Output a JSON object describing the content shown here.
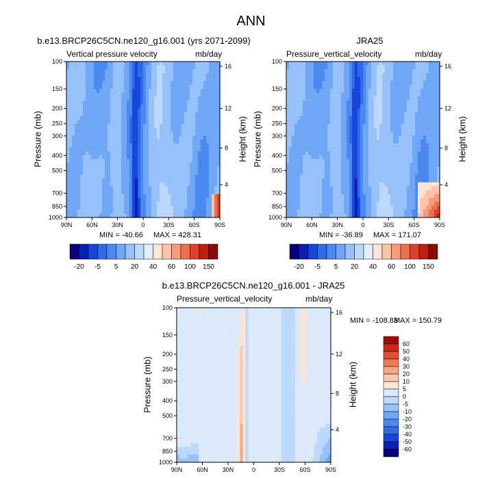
{
  "figure": {
    "title": "ANN"
  },
  "colors": {
    "main_levels": [
      "#08007a",
      "#0a1fb5",
      "#1846dc",
      "#2e6be6",
      "#4a8af0",
      "#6fa6f5",
      "#96c1fa",
      "#bcd8fc",
      "#e0eefe",
      "#fde6d6",
      "#fbc4a8",
      "#f79b7a",
      "#ef6e4c",
      "#e04028",
      "#c21e10",
      "#8c0a04"
    ],
    "diff_levels": [
      "#08007a",
      "#0a1fb5",
      "#1846dc",
      "#2e6be6",
      "#4a8af0",
      "#6fa6f5",
      "#96c1fa",
      "#bcd8fc",
      "#dce9fb",
      "#fde4d2",
      "#fbc8ae",
      "#f7a584",
      "#ef7a58",
      "#e24e32",
      "#c9281a",
      "#9c0c06"
    ]
  },
  "chart_data": [
    {
      "id": "model",
      "type": "heatmap",
      "title": "b.e13.BRCP26C5CN.ne120_g16.001 (yrs 2071-2099)",
      "variable_label": "Vertical pressure velocity",
      "units": "mb/day",
      "ylabel": "Pressure (mb)",
      "y2label": "Height (km)",
      "x_ticks": [
        "90N",
        "60N",
        "30N",
        "0",
        "30S",
        "60S",
        "90S"
      ],
      "y_ticks": [
        "100",
        "150",
        "200",
        "250",
        "300",
        "400",
        "500",
        "700",
        "850",
        "1000"
      ],
      "y2_ticks": [
        "16",
        "12",
        "8",
        "4"
      ],
      "min_label": "MIN = -40.66",
      "max_label": "MAX = 428.31",
      "colorbar": {
        "orientation": "horizontal",
        "labels": [
          "-20",
          "-5",
          "5",
          "20",
          "40",
          "60",
          "100",
          "150"
        ]
      }
    },
    {
      "id": "obs",
      "type": "heatmap",
      "title": "JRA25",
      "variable_label": "Pressure_vertical_velocity",
      "units": "mb/day",
      "ylabel": "Pressure (mb)",
      "y2label": "Height (km)",
      "x_ticks": [
        "90N",
        "60N",
        "30N",
        "0",
        "30S",
        "60S",
        "90S"
      ],
      "y_ticks": [
        "100",
        "150",
        "200",
        "250",
        "300",
        "400",
        "500",
        "700",
        "850",
        "1000"
      ],
      "y2_ticks": [
        "16",
        "12",
        "8",
        "4"
      ],
      "min_label": "MIN = -36.89",
      "max_label": "MAX = 171.07",
      "colorbar": {
        "orientation": "horizontal",
        "labels": [
          "-20",
          "-5",
          "5",
          "20",
          "40",
          "60",
          "100",
          "150"
        ]
      }
    },
    {
      "id": "diff",
      "type": "heatmap",
      "title": "b.e13.BRCP26C5CN.ne120_g16.001 - JRA25",
      "variable_label": "Pressure_vertical_velocity",
      "units": "mb/day",
      "ylabel": "Pressure (mb)",
      "y2label": "Height (km)",
      "x_ticks": [
        "90N",
        "60N",
        "30N",
        "0",
        "30S",
        "60S",
        "90S"
      ],
      "y_ticks": [
        "100",
        "150",
        "200",
        "250",
        "300",
        "400",
        "500",
        "700",
        "850",
        "1000"
      ],
      "y2_ticks": [
        "16",
        "12",
        "8",
        "4"
      ],
      "min_label": "MIN = -108.83",
      "max_label": "MAX = 150.79",
      "colorbar": {
        "orientation": "vertical",
        "labels": [
          "60",
          "50",
          "40",
          "30",
          "20",
          "10",
          "5",
          "0",
          "-5",
          "-10",
          "-20",
          "-30",
          "-40",
          "-50",
          "-60"
        ]
      }
    }
  ]
}
